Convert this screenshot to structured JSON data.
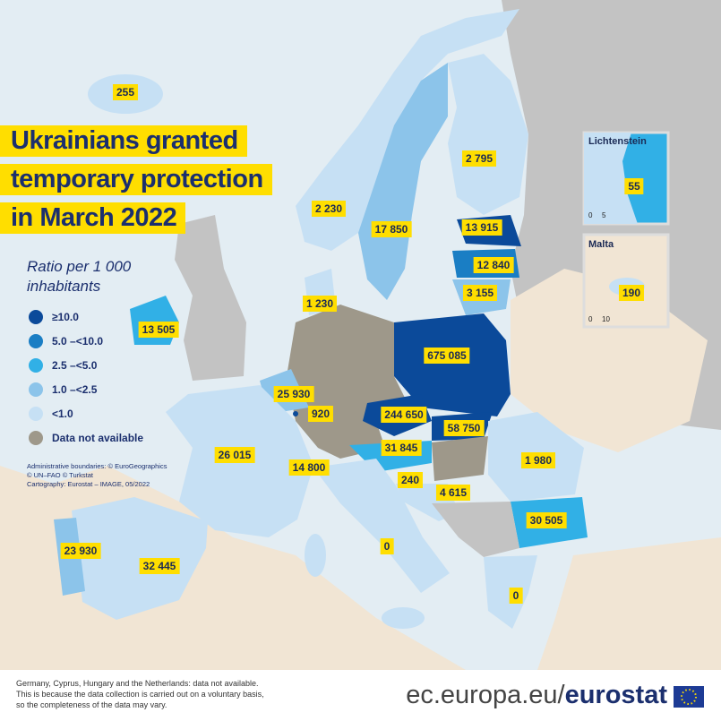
{
  "title": {
    "lines": [
      "Ukrainians granted",
      "temporary protection",
      "in March 2022"
    ]
  },
  "legend": {
    "title": [
      "Ratio per 1 000",
      "inhabitants"
    ],
    "items": [
      "≥10.0",
      "5.0 –<10.0",
      "2.5 –<5.0",
      "1.0 –<2.5",
      "<1.0",
      "Data not available"
    ]
  },
  "credits": [
    "Administrative boundaries: © EuroGeographics",
    "© UN–FAO © Turkstat",
    "Cartography: Eurostat – IMAGE, 05/2022"
  ],
  "map_labels": [
    "255",
    "2 795",
    "2 230",
    "17 850",
    "13 915",
    "12 840",
    "3 155",
    "1 230",
    "13 505",
    "675 085",
    "25 930",
    "920",
    "244 650",
    "58 750",
    "31 845",
    "26 015",
    "1 980",
    "14 800",
    "240",
    "4 615",
    "30 505",
    "23 930",
    "32 445",
    "0",
    "0"
  ],
  "insets": [
    {
      "title": "Lichtenstein",
      "value": "55",
      "scale": [
        "0",
        "5"
      ]
    },
    {
      "title": "Malta",
      "value": "190",
      "scale": [
        "0",
        "10"
      ]
    }
  ],
  "footnote": [
    "Germany, Cyprus, Hungary and the Netherlands: data not available.",
    "This is because the data collection is carried out on a voluntary basis,",
    "so the completeness of the data may vary."
  ],
  "brand": {
    "domain": "ec.europa.eu/",
    "name": "eurostat"
  }
}
